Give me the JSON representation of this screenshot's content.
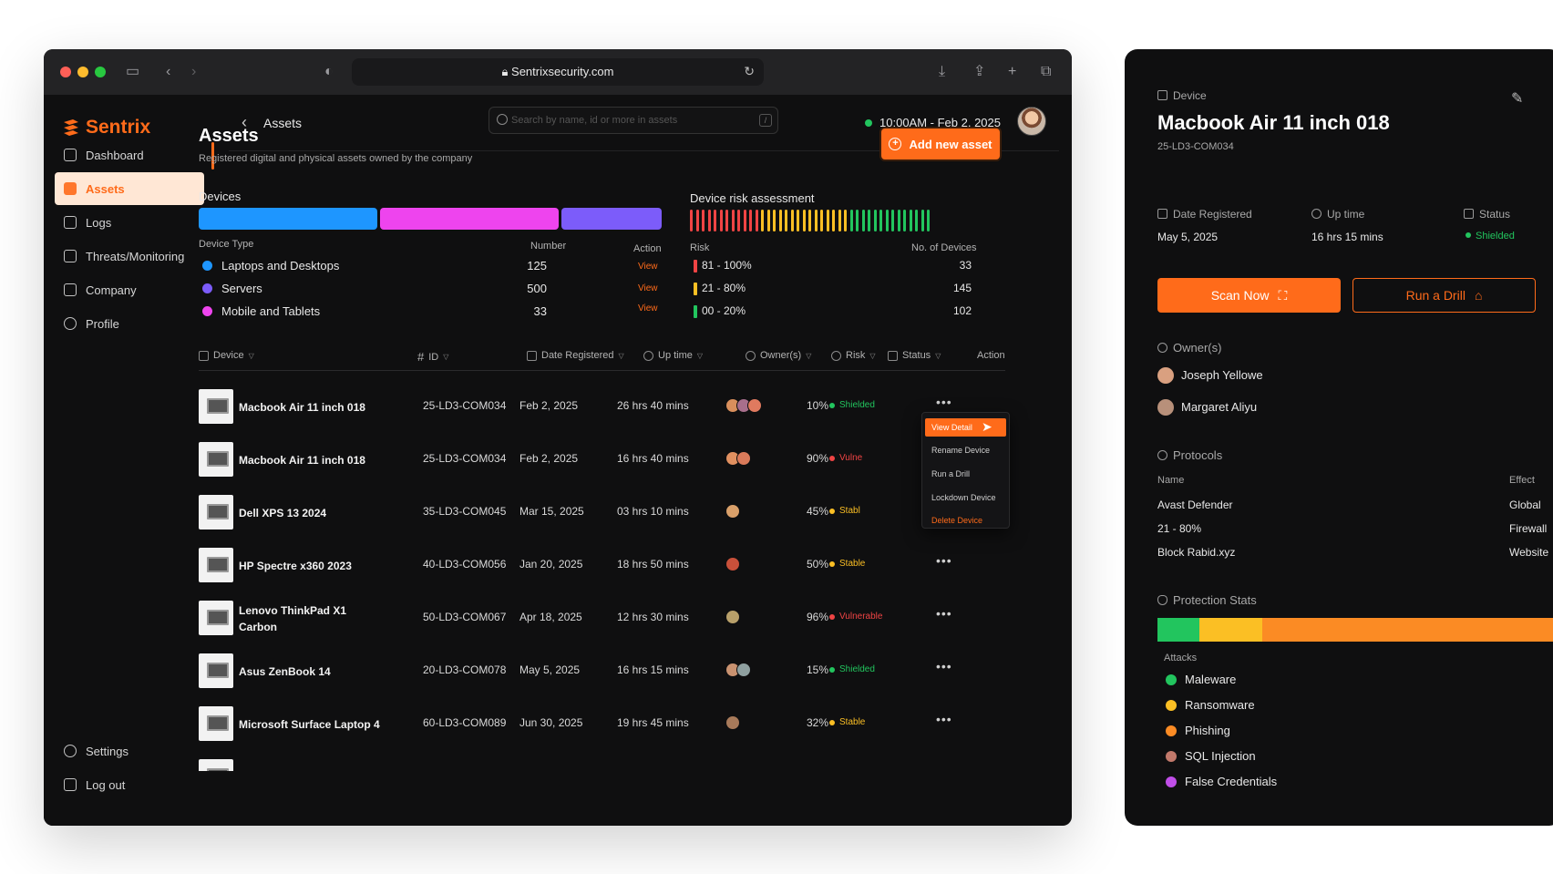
{
  "browser": {
    "url": "Sentrixsecurity.com"
  },
  "brand": {
    "name": "Sentrix",
    "accent": "#ff6b1a"
  },
  "sidebar": {
    "items": [
      {
        "label": "Dashboard",
        "icon": "home-icon"
      },
      {
        "label": "Assets",
        "icon": "assets-icon",
        "active": true
      },
      {
        "label": "Logs",
        "icon": "document-icon"
      },
      {
        "label": "Threats/Monitoring",
        "icon": "monitor-icon"
      },
      {
        "label": "Company",
        "icon": "company-icon"
      },
      {
        "label": "Profile",
        "icon": "user-icon"
      }
    ],
    "bottom": [
      {
        "label": "Settings",
        "icon": "gear-icon"
      },
      {
        "label": "Log out",
        "icon": "logout-icon"
      }
    ]
  },
  "topbar": {
    "breadcrumb": "Assets",
    "search_placeholder": "Search by name, id or more in assets",
    "search_shortcut": "/",
    "datetime": "10:00AM - Feb 2, 2025"
  },
  "page": {
    "title": "Assets",
    "subtitle": "Registered digital and physical assets owned by the company",
    "add_button": "Add new asset"
  },
  "devices": {
    "title": "Devices",
    "bar_colors": [
      "#1e96ff",
      "#ee44ee",
      "#7c5cfa"
    ],
    "header_type": "Device Type",
    "header_number": "Number",
    "header_action": "Action",
    "rows": [
      {
        "type": "Laptops and Desktops",
        "number": "125",
        "action": "View",
        "color": "#1e96ff"
      },
      {
        "type": "Servers",
        "number": "500",
        "action": "View",
        "color": "#7c5cfa"
      },
      {
        "type": "Mobile and Tablets",
        "number": "33",
        "action": "View",
        "color": "#ee44ee"
      }
    ]
  },
  "risk": {
    "title": "Device risk assessment",
    "header_risk": "Risk",
    "header_count": "No. of Devices",
    "rows": [
      {
        "range": "81 - 100%",
        "count": "33",
        "color": "#ef4444"
      },
      {
        "range": "21 - 80%",
        "count": "145",
        "color": "#fbbf24"
      },
      {
        "range": "00 - 20%",
        "count": "102",
        "color": "#22c55e"
      }
    ]
  },
  "table": {
    "headers": [
      "Device",
      "ID",
      "Date Registered",
      "Up time",
      "Owner(s)",
      "Risk",
      "Status",
      "Action"
    ],
    "rows": [
      {
        "device": "Macbook Air 11 inch 018",
        "id": "25-LD3-COM034",
        "date": "Feb 2, 2025",
        "uptime": "26 hrs 40 mins",
        "owners": 3,
        "risk": "10%",
        "status": "Shielded"
      },
      {
        "device": "Macbook Air 11 inch 018",
        "id": "25-LD3-COM034",
        "date": "Feb 2, 2025",
        "uptime": "16 hrs 40 mins",
        "owners": 2,
        "risk": "90%",
        "status": "Vulne"
      },
      {
        "device": "Dell XPS 13 2024",
        "id": "35-LD3-COM045",
        "date": "Mar 15, 2025",
        "uptime": "03 hrs 10 mins",
        "owners": 1,
        "risk": "45%",
        "status": "Stabl"
      },
      {
        "device": "HP Spectre x360 2023",
        "id": "40-LD3-COM056",
        "date": "Jan 20, 2025",
        "uptime": "18 hrs 50 mins",
        "owners": 1,
        "risk": "50%",
        "status": "Stable"
      },
      {
        "device": "Lenovo ThinkPad X1 Carbon",
        "id": "50-LD3-COM067",
        "date": "Apr 18, 2025",
        "uptime": "12 hrs 30 mins",
        "owners": 1,
        "risk": "96%",
        "status": "Vulnerable"
      },
      {
        "device": "Asus ZenBook 14",
        "id": "20-LD3-COM078",
        "date": "May 5, 2025",
        "uptime": "16 hrs 15 mins",
        "owners": 2,
        "risk": "15%",
        "status": "Shielded"
      },
      {
        "device": "Microsoft Surface Laptop 4",
        "id": "60-LD3-COM089",
        "date": "Jun 30, 2025",
        "uptime": "19 hrs 45 mins",
        "owners": 1,
        "risk": "32%",
        "status": "Stable"
      }
    ],
    "more_label": "•••"
  },
  "context_menu": {
    "items": [
      "View Detail",
      "Rename Device",
      "Run a Drill",
      "Lockdown Device",
      "Delete Device"
    ]
  },
  "detail": {
    "section_label": "Device",
    "title": "Macbook Air 11 inch 018",
    "id": "25-LD3-COM034",
    "date_label": "Date Registered",
    "date_value": "May 5, 2025",
    "uptime_label": "Up time",
    "uptime_value": "16 hrs 15 mins",
    "status_label": "Status",
    "status_value": "Shielded",
    "scan_button": "Scan Now",
    "drill_button": "Run a Drill",
    "owners_label": "Owner(s)",
    "owners": [
      "Joseph Yellowe",
      "Margaret Aliyu"
    ],
    "protocols_label": "Protocols",
    "protocol_headers": {
      "name": "Name",
      "effect": "Effect"
    },
    "protocols": [
      {
        "name": "Avast Defender",
        "effect": "Global"
      },
      {
        "name": "21 - 80%",
        "effect": "Firewall"
      },
      {
        "name": "Block Rabid.xyz",
        "effect": "Website"
      }
    ],
    "stats_label": "Protection Stats",
    "stats_segments": [
      {
        "fraction": 0.1,
        "color": "#22c55e"
      },
      {
        "fraction": 0.15,
        "color": "#fbbf24"
      },
      {
        "fraction": 0.75,
        "color": "#fb8b24"
      }
    ],
    "attacks_label": "Attacks",
    "attacks": [
      {
        "name": "Maleware",
        "color": "#22c55e"
      },
      {
        "name": "Ransomware",
        "color": "#fbbf24"
      },
      {
        "name": "Phishing",
        "color": "#fb8b24"
      },
      {
        "name": "SQL Injection",
        "color": "#c2796b"
      },
      {
        "name": "False Credentials",
        "color": "#c04ee8"
      }
    ]
  }
}
